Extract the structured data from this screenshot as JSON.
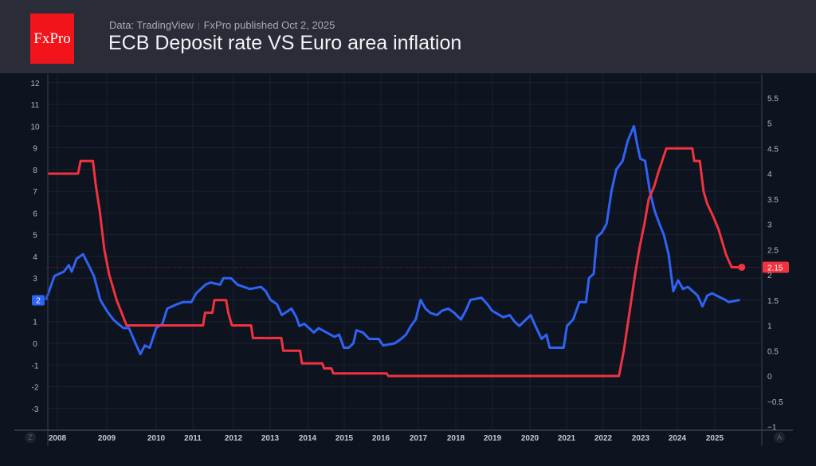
{
  "header": {
    "logo_text": "FxPro",
    "source": "Data: TradingView",
    "published": "FxPro published Oct 2,  2025",
    "title": "ECB Deposit rate VS Euro area inflation"
  },
  "controls": {
    "left_button": "Z",
    "right_button": "A"
  },
  "chart_data": {
    "type": "line",
    "title": "ECB Deposit rate VS Euro area inflation",
    "grid": true,
    "x_ticks": [
      "2008",
      "2009",
      "2010",
      "2011",
      "2012",
      "2013",
      "2014",
      "2015",
      "2016",
      "2017",
      "2018",
      "2019",
      "2020",
      "2021",
      "2022",
      "2023",
      "2024",
      "2025"
    ],
    "left_axis": {
      "ticks": [
        12,
        11,
        10,
        9,
        8,
        7,
        6,
        5,
        4,
        3,
        2,
        1,
        0,
        -1,
        -2,
        -3
      ],
      "range": [
        -3.4,
        12.3
      ]
    },
    "right_axis": {
      "ticks": [
        "5.5",
        "5",
        "4.5",
        "4",
        "3.5",
        "3",
        "2.5",
        "2",
        "1.5",
        "1",
        "0.5",
        "0",
        "−0.5",
        "−1"
      ],
      "range": [
        -1,
        5.9
      ]
    },
    "series": [
      {
        "axis": "left",
        "color": "#2f63f5",
        "last_label": "2",
        "points": [
          [
            2007.77,
            2.0
          ],
          [
            2007.94,
            3.1
          ],
          [
            2008.13,
            3.3
          ],
          [
            2008.23,
            3.6
          ],
          [
            2008.29,
            3.3
          ],
          [
            2008.39,
            3.9
          ],
          [
            2008.52,
            4.1
          ],
          [
            2008.61,
            3.7
          ],
          [
            2008.74,
            3.1
          ],
          [
            2008.87,
            2.0
          ],
          [
            2009.0,
            1.5
          ],
          [
            2009.13,
            1.1
          ],
          [
            2009.23,
            0.9
          ],
          [
            2009.34,
            0.7
          ],
          [
            2009.45,
            0.7
          ],
          [
            2009.58,
            0.0
          ],
          [
            2009.68,
            -0.5
          ],
          [
            2009.77,
            -0.1
          ],
          [
            2009.87,
            -0.2
          ],
          [
            2010.0,
            0.7
          ],
          [
            2010.17,
            0.9
          ],
          [
            2010.3,
            1.6
          ],
          [
            2010.57,
            1.8
          ],
          [
            2010.74,
            1.9
          ],
          [
            2010.96,
            1.9
          ],
          [
            2011.08,
            2.3
          ],
          [
            2011.31,
            2.7
          ],
          [
            2011.43,
            2.8
          ],
          [
            2011.67,
            2.7
          ],
          [
            2011.75,
            3.0
          ],
          [
            2011.94,
            3.0
          ],
          [
            2012.11,
            2.7
          ],
          [
            2012.45,
            2.5
          ],
          [
            2012.75,
            2.6
          ],
          [
            2012.88,
            2.4
          ],
          [
            2013.01,
            2.0
          ],
          [
            2013.18,
            1.8
          ],
          [
            2013.31,
            1.3
          ],
          [
            2013.57,
            1.6
          ],
          [
            2013.7,
            1.2
          ],
          [
            2013.78,
            0.8
          ],
          [
            2013.91,
            0.9
          ],
          [
            2014.17,
            0.5
          ],
          [
            2014.3,
            0.7
          ],
          [
            2014.52,
            0.5
          ],
          [
            2014.73,
            0.3
          ],
          [
            2014.86,
            0.4
          ],
          [
            2014.99,
            -0.2
          ],
          [
            2015.12,
            -0.2
          ],
          [
            2015.25,
            0.0
          ],
          [
            2015.33,
            0.6
          ],
          [
            2015.51,
            0.5
          ],
          [
            2015.68,
            0.2
          ],
          [
            2015.94,
            0.2
          ],
          [
            2016.06,
            -0.1
          ],
          [
            2016.37,
            0.0
          ],
          [
            2016.54,
            0.2
          ],
          [
            2016.67,
            0.4
          ],
          [
            2016.8,
            0.8
          ],
          [
            2016.93,
            1.1
          ],
          [
            2017.06,
            2.0
          ],
          [
            2017.19,
            1.6
          ],
          [
            2017.32,
            1.4
          ],
          [
            2017.5,
            1.3
          ],
          [
            2017.63,
            1.5
          ],
          [
            2017.8,
            1.6
          ],
          [
            2017.96,
            1.4
          ],
          [
            2018.14,
            1.1
          ],
          [
            2018.27,
            1.5
          ],
          [
            2018.4,
            2.0
          ],
          [
            2018.7,
            2.1
          ],
          [
            2018.86,
            1.8
          ],
          [
            2018.99,
            1.5
          ],
          [
            2019.29,
            1.2
          ],
          [
            2019.46,
            1.3
          ],
          [
            2019.59,
            1.0
          ],
          [
            2019.72,
            0.8
          ],
          [
            2020.02,
            1.3
          ],
          [
            2020.15,
            0.8
          ],
          [
            2020.32,
            0.2
          ],
          [
            2020.45,
            0.4
          ],
          [
            2020.54,
            -0.2
          ],
          [
            2020.92,
            -0.2
          ],
          [
            2021.01,
            0.8
          ],
          [
            2021.18,
            1.1
          ],
          [
            2021.35,
            1.9
          ],
          [
            2021.53,
            1.9
          ],
          [
            2021.61,
            3.0
          ],
          [
            2021.74,
            3.2
          ],
          [
            2021.83,
            4.9
          ],
          [
            2021.96,
            5.1
          ],
          [
            2022.09,
            5.5
          ],
          [
            2022.22,
            7.0
          ],
          [
            2022.35,
            8.0
          ],
          [
            2022.52,
            8.4
          ],
          [
            2022.65,
            9.3
          ],
          [
            2022.82,
            10.0
          ],
          [
            2022.9,
            9.2
          ],
          [
            2022.99,
            8.5
          ],
          [
            2023.12,
            8.4
          ],
          [
            2023.25,
            7.0
          ],
          [
            2023.38,
            6.1
          ],
          [
            2023.51,
            5.5
          ],
          [
            2023.63,
            5.0
          ],
          [
            2023.76,
            4.1
          ],
          [
            2023.89,
            2.4
          ],
          [
            2024.02,
            2.9
          ],
          [
            2024.15,
            2.5
          ],
          [
            2024.28,
            2.6
          ],
          [
            2024.54,
            2.2
          ],
          [
            2024.67,
            1.7
          ],
          [
            2024.8,
            2.2
          ],
          [
            2024.93,
            2.3
          ],
          [
            2025.28,
            2.0
          ],
          [
            2025.37,
            1.9
          ],
          [
            2025.67,
            2.0
          ]
        ]
      },
      {
        "axis": "right",
        "color": "#f2323f",
        "last_label": "2.15",
        "points": [
          [
            2007.8,
            4.0
          ],
          [
            2008.42,
            4.0
          ],
          [
            2008.47,
            4.25
          ],
          [
            2008.72,
            4.25
          ],
          [
            2008.78,
            3.75
          ],
          [
            2008.86,
            3.25
          ],
          [
            2008.95,
            2.5
          ],
          [
            2009.05,
            2.0
          ],
          [
            2009.2,
            1.5
          ],
          [
            2009.3,
            1.25
          ],
          [
            2009.4,
            1.0
          ],
          [
            2011.25,
            1.0
          ],
          [
            2011.3,
            1.25
          ],
          [
            2011.48,
            1.25
          ],
          [
            2011.53,
            1.5
          ],
          [
            2011.82,
            1.5
          ],
          [
            2011.87,
            1.25
          ],
          [
            2011.96,
            1.0
          ],
          [
            2012.48,
            1.0
          ],
          [
            2012.53,
            0.75
          ],
          [
            2013.3,
            0.75
          ],
          [
            2013.35,
            0.5
          ],
          [
            2013.8,
            0.5
          ],
          [
            2013.85,
            0.25
          ],
          [
            2014.4,
            0.25
          ],
          [
            2014.45,
            0.15
          ],
          [
            2014.65,
            0.15
          ],
          [
            2014.7,
            0.05
          ],
          [
            2016.15,
            0.05
          ],
          [
            2016.2,
            0.0
          ],
          [
            2022.42,
            0.0
          ],
          [
            2022.55,
            0.5
          ],
          [
            2022.7,
            1.25
          ],
          [
            2022.85,
            2.0
          ],
          [
            2022.96,
            2.5
          ],
          [
            2023.1,
            3.0
          ],
          [
            2023.22,
            3.5
          ],
          [
            2023.37,
            3.75
          ],
          [
            2023.47,
            4.0
          ],
          [
            2023.7,
            4.5
          ],
          [
            2024.4,
            4.5
          ],
          [
            2024.45,
            4.25
          ],
          [
            2024.6,
            4.25
          ],
          [
            2024.7,
            3.65
          ],
          [
            2024.8,
            3.4
          ],
          [
            2024.96,
            3.15
          ],
          [
            2025.1,
            2.9
          ],
          [
            2025.2,
            2.65
          ],
          [
            2025.3,
            2.4
          ],
          [
            2025.45,
            2.15
          ],
          [
            2025.72,
            2.15
          ]
        ]
      }
    ]
  }
}
